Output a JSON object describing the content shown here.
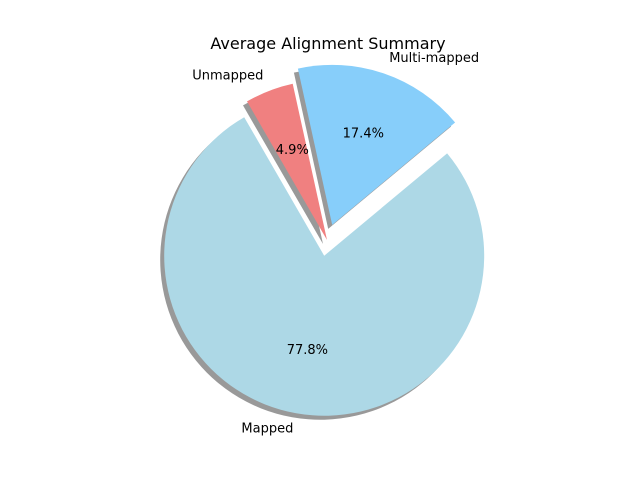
{
  "chart_data": {
    "type": "pie",
    "title": "Average Alignment Summary",
    "slices": [
      {
        "label": "Mapped",
        "value": 77.8,
        "pct_label": "77.8%",
        "color": "#add8e6",
        "exploded": true
      },
      {
        "label": "Multi-mapped",
        "value": 17.4,
        "pct_label": "17.4%",
        "color": "#87cefa",
        "exploded": true
      },
      {
        "label": "Unmapped",
        "value": 4.9,
        "pct_label": "4.9%",
        "color": "#f08080",
        "exploded": false
      }
    ],
    "shadow": true,
    "legend": false,
    "grid": false
  }
}
